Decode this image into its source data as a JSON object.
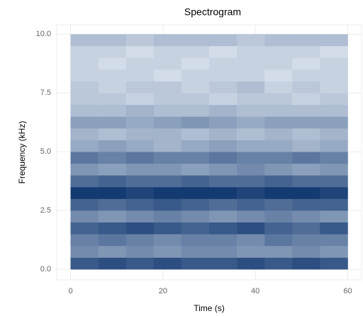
{
  "chart_data": {
    "type": "heatmap",
    "title": "Spectrogram",
    "x_label": "Time (s)",
    "y_label": "Frequency (kHz)",
    "xlim": [
      -3,
      63
    ],
    "ylim": [
      -0.45,
      10.4
    ],
    "xticks": [
      0,
      20,
      40,
      60
    ],
    "yticks": [
      {
        "value": 0,
        "label": "0.0"
      },
      {
        "value": 2.5,
        "label": "2.5"
      },
      {
        "value": 5,
        "label": "5.0"
      },
      {
        "value": 7.5,
        "label": "7.5"
      },
      {
        "value": 10,
        "label": "10.0"
      }
    ],
    "grid": true,
    "colormap": [
      "#f7fbff",
      "#08306b"
    ],
    "xbins": [
      0,
      6,
      12,
      18,
      24,
      30,
      36,
      42,
      48,
      54,
      60
    ],
    "ybins": [
      0,
      0.5,
      1,
      1.5,
      2,
      2.5,
      3,
      3.5,
      4,
      4.5,
      5,
      5.5,
      6,
      6.5,
      7,
      7.5,
      8,
      8.5,
      9,
      9.5,
      10
    ],
    "z": [
      [
        0.8,
        0.85,
        0.8,
        0.85,
        0.8,
        0.8,
        0.85,
        0.8,
        0.85,
        0.8
      ],
      [
        0.55,
        0.5,
        0.55,
        0.5,
        0.55,
        0.55,
        0.5,
        0.5,
        0.55,
        0.5
      ],
      [
        0.6,
        0.65,
        0.6,
        0.55,
        0.6,
        0.6,
        0.55,
        0.65,
        0.6,
        0.6
      ],
      [
        0.75,
        0.8,
        0.85,
        0.8,
        0.75,
        0.8,
        0.85,
        0.75,
        0.7,
        0.8
      ],
      [
        0.55,
        0.5,
        0.55,
        0.6,
        0.55,
        0.5,
        0.55,
        0.6,
        0.55,
        0.5
      ],
      [
        0.75,
        0.7,
        0.75,
        0.8,
        0.75,
        0.7,
        0.75,
        0.7,
        0.75,
        0.75
      ],
      [
        0.95,
        0.95,
        0.9,
        0.95,
        0.95,
        0.95,
        0.9,
        0.95,
        0.95,
        0.9
      ],
      [
        0.7,
        0.75,
        0.7,
        0.7,
        0.75,
        0.7,
        0.7,
        0.75,
        0.7,
        0.7
      ],
      [
        0.5,
        0.45,
        0.5,
        0.5,
        0.45,
        0.5,
        0.55,
        0.5,
        0.45,
        0.5
      ],
      [
        0.65,
        0.6,
        0.65,
        0.6,
        0.6,
        0.65,
        0.6,
        0.6,
        0.65,
        0.6
      ],
      [
        0.4,
        0.45,
        0.4,
        0.35,
        0.4,
        0.45,
        0.4,
        0.4,
        0.35,
        0.4
      ],
      [
        0.35,
        0.3,
        0.35,
        0.35,
        0.3,
        0.35,
        0.3,
        0.35,
        0.3,
        0.35
      ],
      [
        0.45,
        0.45,
        0.4,
        0.45,
        0.5,
        0.45,
        0.4,
        0.45,
        0.45,
        0.45
      ],
      [
        0.3,
        0.3,
        0.35,
        0.3,
        0.3,
        0.35,
        0.3,
        0.3,
        0.3,
        0.3
      ],
      [
        0.25,
        0.25,
        0.2,
        0.25,
        0.25,
        0.2,
        0.25,
        0.25,
        0.2,
        0.25
      ],
      [
        0.25,
        0.2,
        0.25,
        0.25,
        0.2,
        0.25,
        0.3,
        0.2,
        0.25,
        0.2
      ],
      [
        0.2,
        0.2,
        0.2,
        0.15,
        0.2,
        0.2,
        0.2,
        0.15,
        0.2,
        0.2
      ],
      [
        0.2,
        0.15,
        0.2,
        0.2,
        0.15,
        0.2,
        0.2,
        0.2,
        0.15,
        0.2
      ],
      [
        0.2,
        0.2,
        0.15,
        0.2,
        0.2,
        0.15,
        0.2,
        0.2,
        0.2,
        0.15
      ],
      [
        0.3,
        0.3,
        0.25,
        0.3,
        0.3,
        0.3,
        0.25,
        0.3,
        0.3,
        0.3
      ]
    ]
  }
}
